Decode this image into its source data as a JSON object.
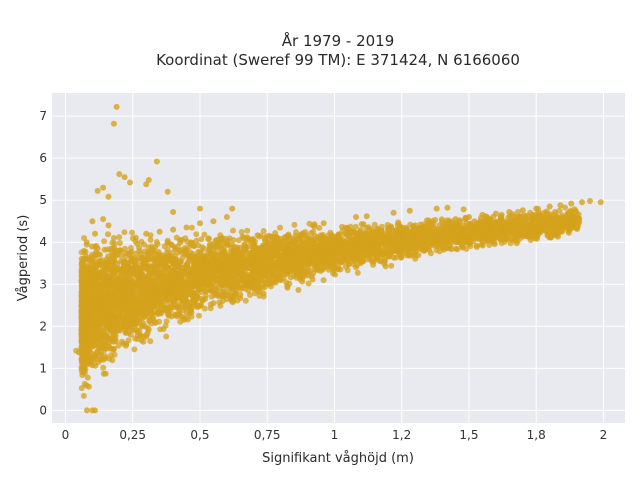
{
  "chart_data": {
    "type": "scatter",
    "title_line1": "År 1979 - 2019",
    "title_line2": "Koordinat (Sweref 99 TM): E 371424, N 6166060",
    "xlabel": "Signifikant våghöjd (m)",
    "ylabel": "Vågperiod (s)",
    "xlim": [
      -0.05,
      2.08
    ],
    "ylim": [
      -0.3,
      7.55
    ],
    "x_ticks": [
      {
        "value": 0,
        "label": "0"
      },
      {
        "value": 0.25,
        "label": "0,25"
      },
      {
        "value": 0.5,
        "label": "0,5"
      },
      {
        "value": 0.75,
        "label": "0,75"
      },
      {
        "value": 1,
        "label": "1"
      },
      {
        "value": 1.25,
        "label": "1,2"
      },
      {
        "value": 1.5,
        "label": "1,5"
      },
      {
        "value": 1.75,
        "label": "1,8"
      },
      {
        "value": 2,
        "label": "2"
      }
    ],
    "y_ticks": [
      {
        "value": 0,
        "label": "0"
      },
      {
        "value": 1,
        "label": "1"
      },
      {
        "value": 2,
        "label": "2"
      },
      {
        "value": 3,
        "label": "3"
      },
      {
        "value": 4,
        "label": "4"
      },
      {
        "value": 5,
        "label": "5"
      },
      {
        "value": 6,
        "label": "6"
      },
      {
        "value": 7,
        "label": "7"
      }
    ],
    "grid": true,
    "marker_color": "#D4A21C",
    "plot_background": "#E9E9F0",
    "series": [
      {
        "points": [
          [
            0.08,
            0
          ],
          [
            0.1,
            0
          ],
          [
            0.11,
            0
          ],
          [
            0.19,
            7.22
          ],
          [
            0.18,
            6.82
          ],
          [
            0.34,
            5.92
          ],
          [
            0.38,
            5.2
          ],
          [
            0.2,
            5.62
          ],
          [
            0.22,
            5.55
          ],
          [
            0.24,
            5.42
          ],
          [
            0.31,
            5.48
          ],
          [
            0.3,
            5.38
          ],
          [
            0.14,
            5.3
          ],
          [
            0.12,
            5.22
          ],
          [
            0.16,
            5.08
          ],
          [
            0.04,
            1.42
          ],
          [
            0.05,
            1.38
          ],
          [
            0.06,
            1.5
          ],
          [
            0.07,
            1.6
          ],
          [
            0.07,
            1.35
          ],
          [
            0.08,
            1.28
          ],
          [
            0.08,
            1.55
          ],
          [
            0.09,
            1.72
          ],
          [
            0.09,
            1.48
          ],
          [
            0.1,
            1.18
          ],
          [
            0.1,
            1.95
          ],
          [
            0.11,
            2.25
          ],
          [
            0.11,
            1.62
          ],
          [
            0.12,
            2.5
          ],
          [
            0.12,
            1.4
          ],
          [
            0.13,
            2.8
          ],
          [
            0.13,
            1.2
          ],
          [
            0.1,
            4.5
          ],
          [
            0.11,
            4.2
          ],
          [
            0.12,
            3.85
          ],
          [
            0.13,
            3.5
          ],
          [
            0.14,
            3.2
          ],
          [
            0.15,
            2.9
          ],
          [
            0.14,
            4.55
          ],
          [
            0.16,
            4.4
          ],
          [
            0.18,
            4.1
          ],
          [
            0.2,
            3.8
          ],
          [
            0.22,
            3.3
          ],
          [
            0.25,
            2.9
          ],
          [
            0.28,
            2.7
          ],
          [
            0.3,
            2.6
          ],
          [
            0.15,
            1.5
          ],
          [
            0.18,
            1.7
          ],
          [
            0.2,
            1.9
          ],
          [
            0.22,
            2.0
          ],
          [
            0.25,
            2.2
          ],
          [
            0.3,
            2.35
          ],
          [
            0.35,
            2.5
          ],
          [
            0.4,
            2.6
          ],
          [
            0.45,
            2.75
          ],
          [
            0.5,
            2.9
          ],
          [
            0.2,
            2.4
          ],
          [
            0.25,
            2.6
          ],
          [
            0.3,
            2.9
          ],
          [
            0.35,
            3.1
          ],
          [
            0.4,
            3.25
          ],
          [
            0.45,
            3.35
          ],
          [
            0.5,
            3.45
          ],
          [
            0.55,
            3.55
          ],
          [
            0.6,
            3.65
          ],
          [
            0.65,
            3.72
          ],
          [
            0.7,
            3.8
          ],
          [
            0.75,
            3.85
          ],
          [
            0.8,
            3.9
          ],
          [
            0.85,
            3.95
          ],
          [
            0.9,
            4.0
          ],
          [
            0.95,
            4.05
          ],
          [
            1.0,
            4.1
          ],
          [
            1.05,
            4.15
          ],
          [
            1.1,
            4.2
          ],
          [
            1.15,
            4.25
          ],
          [
            1.2,
            4.3
          ],
          [
            1.25,
            4.35
          ],
          [
            1.3,
            4.4
          ],
          [
            1.35,
            4.45
          ],
          [
            1.4,
            4.5
          ],
          [
            1.45,
            4.55
          ],
          [
            1.5,
            4.6
          ],
          [
            1.55,
            4.65
          ],
          [
            1.6,
            4.68
          ],
          [
            1.65,
            4.72
          ],
          [
            1.7,
            4.76
          ],
          [
            1.75,
            4.8
          ],
          [
            1.8,
            4.85
          ],
          [
            1.84,
            4.88
          ],
          [
            1.88,
            4.92
          ],
          [
            1.92,
            4.95
          ],
          [
            1.95,
            4.98
          ],
          [
            1.99,
            4.95
          ],
          [
            0.3,
            4.2
          ],
          [
            0.35,
            4.25
          ],
          [
            0.4,
            4.3
          ],
          [
            0.45,
            4.35
          ],
          [
            0.5,
            4.45
          ],
          [
            0.55,
            4.5
          ],
          [
            0.6,
            4.6
          ],
          [
            0.62,
            4.8
          ],
          [
            0.5,
            4.8
          ],
          [
            0.4,
            4.72
          ],
          [
            0.45,
            2.6
          ],
          [
            0.5,
            2.5
          ],
          [
            0.55,
            2.55
          ],
          [
            0.6,
            2.65
          ],
          [
            0.65,
            2.75
          ],
          [
            0.7,
            2.9
          ],
          [
            0.75,
            3.0
          ],
          [
            0.8,
            3.1
          ],
          [
            0.85,
            3.2
          ],
          [
            0.9,
            3.3
          ],
          [
            0.95,
            3.4
          ],
          [
            1.0,
            3.5
          ],
          [
            1.05,
            3.6
          ],
          [
            1.1,
            3.7
          ],
          [
            1.15,
            3.8
          ],
          [
            1.2,
            3.88
          ],
          [
            1.25,
            3.95
          ],
          [
            1.3,
            4.0
          ],
          [
            1.35,
            4.05
          ],
          [
            1.4,
            4.1
          ],
          [
            1.45,
            4.15
          ],
          [
            1.5,
            4.2
          ],
          [
            1.55,
            4.28
          ],
          [
            1.6,
            4.32
          ],
          [
            1.65,
            4.36
          ],
          [
            1.7,
            4.4
          ],
          [
            1.75,
            4.45
          ],
          [
            1.8,
            4.5
          ],
          [
            1.85,
            4.55
          ],
          [
            0.7,
            2.95
          ],
          [
            0.72,
            3.05
          ],
          [
            0.68,
            2.85
          ],
          [
            0.78,
            3.5
          ],
          [
            0.82,
            3.6
          ],
          [
            0.88,
            3.7
          ],
          [
            0.92,
            4.4
          ],
          [
            0.96,
            4.45
          ],
          [
            1.08,
            4.6
          ],
          [
            1.12,
            4.62
          ],
          [
            1.22,
            4.7
          ],
          [
            1.28,
            4.75
          ],
          [
            1.38,
            4.8
          ],
          [
            1.42,
            4.82
          ],
          [
            1.48,
            4.78
          ],
          [
            1.52,
            4.5
          ],
          [
            1.58,
            4.55
          ],
          [
            1.62,
            4.6
          ],
          [
            1.68,
            4.58
          ],
          [
            1.72,
            4.62
          ],
          [
            1.78,
            4.7
          ],
          [
            1.82,
            4.72
          ]
        ]
      }
    ]
  }
}
